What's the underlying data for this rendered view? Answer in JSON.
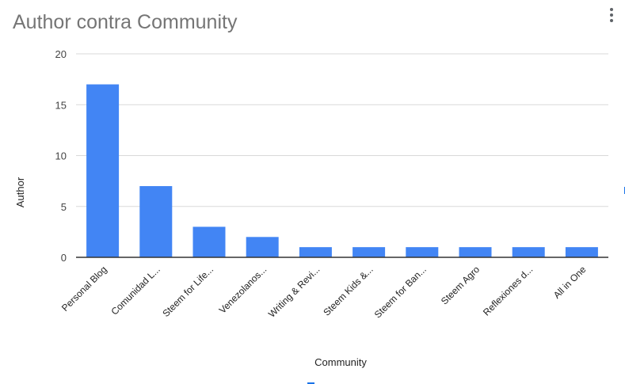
{
  "chart_data": {
    "type": "bar",
    "title": "Author contra Community",
    "xlabel": "Community",
    "ylabel": "Author",
    "categories": [
      "Personal Blog",
      "Comunidad L...",
      "Steem for Life...",
      "Venezolanos...",
      "Writing & Revi...",
      "Steem Kids &...",
      "Steem for Ban...",
      "Steem Agro",
      "Reflexiones d...",
      "All in One"
    ],
    "values": [
      17,
      7,
      3,
      2,
      1,
      1,
      1,
      1,
      1,
      1
    ],
    "ylim": [
      0,
      20
    ],
    "yticks": [
      0,
      5,
      10,
      15,
      20
    ],
    "grid": true,
    "legend": "none",
    "bar_color": "#4285f4",
    "axis_color": "#333333",
    "grid_color": "#d9d9d9"
  }
}
